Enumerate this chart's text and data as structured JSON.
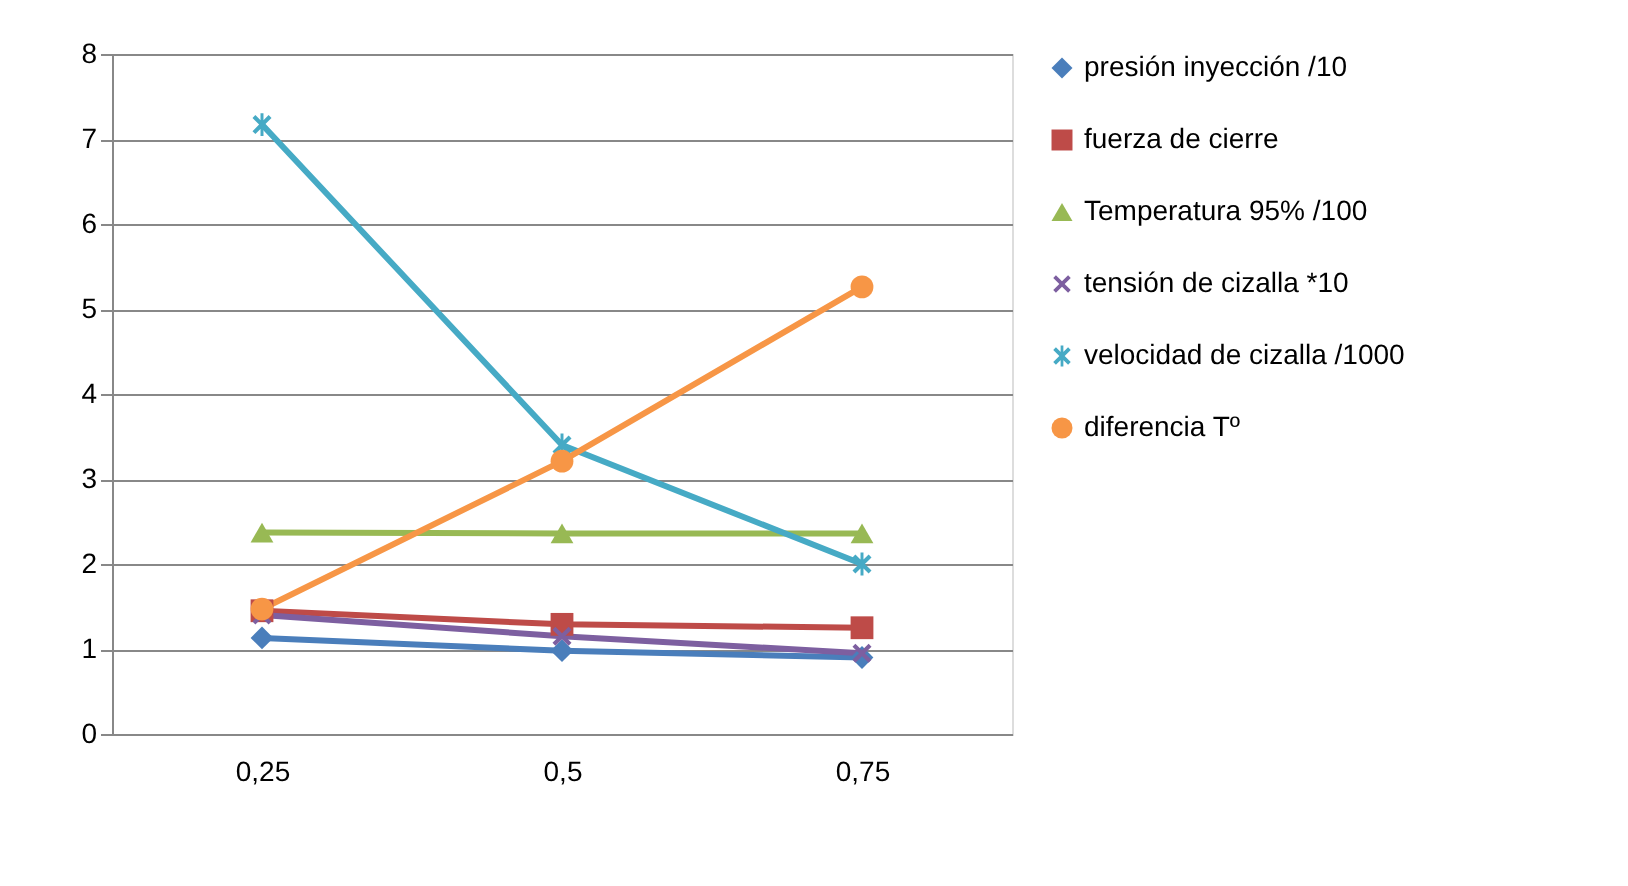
{
  "chart_data": {
    "type": "line",
    "categories": [
      "0,25",
      "0,5",
      "0,75"
    ],
    "ylim": [
      0,
      8
    ],
    "yticks": [
      0,
      1,
      2,
      3,
      4,
      5,
      6,
      7,
      8
    ],
    "grid": "y",
    "legend": "right",
    "line_style": "solid",
    "series": [
      {
        "name": "presión inyección /10",
        "color": "#4a7ebb",
        "marker": "diamond",
        "values": [
          1.13,
          0.98,
          0.9
        ]
      },
      {
        "name": "fuerza de cierre",
        "color": "#be4b48",
        "marker": "square",
        "values": [
          1.45,
          1.29,
          1.25
        ]
      },
      {
        "name": "Temperatura 95% /100",
        "color": "#98b954",
        "marker": "triangle",
        "values": [
          2.37,
          2.36,
          2.36
        ]
      },
      {
        "name": "tensión de cizalla *10",
        "color": "#7d5fa0",
        "marker": "cross",
        "values": [
          1.4,
          1.15,
          0.95
        ]
      },
      {
        "name": "velocidad de cizalla /1000",
        "color": "#46aac5",
        "marker": "star",
        "values": [
          7.17,
          3.4,
          2.0
        ]
      },
      {
        "name": "diferencia Tº",
        "color": "#f79646",
        "marker": "circle",
        "values": [
          1.47,
          3.21,
          5.26
        ]
      }
    ]
  }
}
